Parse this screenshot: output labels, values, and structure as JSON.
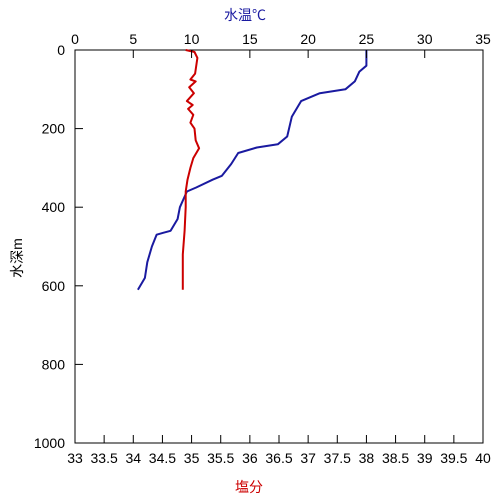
{
  "chart_data": {
    "type": "line",
    "x_top": {
      "label": "水温℃",
      "color": "#1a1aa0",
      "range": [
        0,
        35
      ],
      "ticks": [
        0,
        5,
        10,
        15,
        20,
        25,
        30,
        35
      ],
      "tick_labels": [
        "0",
        "5",
        "10",
        "15",
        "20",
        "25",
        "30",
        "35"
      ]
    },
    "x_bottom": {
      "label": "塩分",
      "color": "#cc0000",
      "range": [
        33,
        40
      ],
      "ticks": [
        33,
        33.5,
        34,
        34.5,
        35,
        35.5,
        36,
        36.5,
        37,
        37.5,
        38,
        38.5,
        39,
        39.5,
        40
      ],
      "tick_labels": [
        "33",
        "33.5",
        "34",
        "34.5",
        "35",
        "35.5",
        "36",
        "36.5",
        "37",
        "37.5",
        "38",
        "38.5",
        "39",
        "39.5",
        "40"
      ]
    },
    "y": {
      "label": "水深m",
      "range": [
        0,
        1000
      ],
      "inverted": true,
      "ticks": [
        0,
        200,
        400,
        600,
        800,
        1000
      ],
      "tick_labels": [
        "0",
        "200",
        "400",
        "600",
        "800",
        "1000"
      ]
    },
    "grid": false,
    "series": [
      {
        "axis": "x_top",
        "color": "#1a1aa0",
        "points": [
          [
            25,
            0
          ],
          [
            25,
            40
          ],
          [
            24.4,
            55
          ],
          [
            24,
            80
          ],
          [
            23.2,
            100
          ],
          [
            21,
            110
          ],
          [
            19.4,
            130
          ],
          [
            18.6,
            170
          ],
          [
            18.2,
            220
          ],
          [
            17.4,
            240
          ],
          [
            15.6,
            248
          ],
          [
            14,
            262
          ],
          [
            13.4,
            290
          ],
          [
            12.6,
            320
          ],
          [
            11.8,
            330
          ],
          [
            10.4,
            350
          ],
          [
            9.6,
            360
          ],
          [
            9,
            400
          ],
          [
            8.8,
            430
          ],
          [
            8.2,
            460
          ],
          [
            7.6,
            465
          ],
          [
            7,
            470
          ],
          [
            6.6,
            500
          ],
          [
            6.2,
            540
          ],
          [
            6,
            580
          ],
          [
            5.4,
            610
          ]
        ]
      },
      {
        "axis": "x_bottom",
        "color": "#cc0000",
        "points": [
          [
            34.9,
            0
          ],
          [
            35.05,
            5
          ],
          [
            35.1,
            20
          ],
          [
            35.06,
            60
          ],
          [
            34.98,
            75
          ],
          [
            35.07,
            80
          ],
          [
            34.96,
            95
          ],
          [
            35.04,
            110
          ],
          [
            34.92,
            130
          ],
          [
            35.02,
            140
          ],
          [
            34.94,
            150
          ],
          [
            35.03,
            165
          ],
          [
            34.98,
            185
          ],
          [
            35.05,
            200
          ],
          [
            35.07,
            230
          ],
          [
            35.13,
            250
          ],
          [
            35.03,
            275
          ],
          [
            34.98,
            300
          ],
          [
            34.93,
            330
          ],
          [
            34.9,
            360
          ],
          [
            34.9,
            400
          ],
          [
            34.88,
            460
          ],
          [
            34.85,
            520
          ],
          [
            34.85,
            560
          ],
          [
            34.85,
            610
          ]
        ]
      }
    ]
  }
}
